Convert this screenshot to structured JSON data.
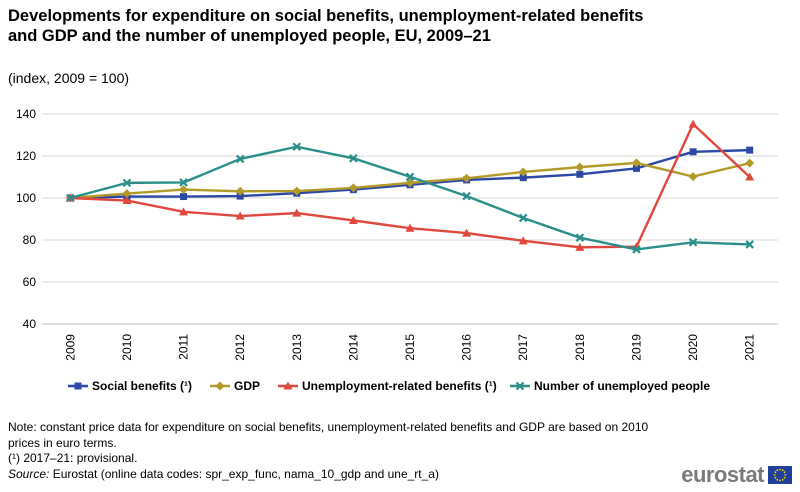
{
  "title": "Developments for expenditure on social benefits, unemployment-related benefits and GDP and the number of unemployed people, EU, 2009–21",
  "subtitle": "(index, 2009 = 100)",
  "chart_data": {
    "type": "line",
    "title": "Developments for expenditure on social benefits, unemployment-related benefits and GDP and the number of unemployed people, EU, 2009–21",
    "subtitle": "(index, 2009 = 100)",
    "categories": [
      "2009",
      "2010",
      "2011",
      "2012",
      "2013",
      "2014",
      "2015",
      "2016",
      "2017",
      "2018",
      "2019",
      "2020",
      "2021"
    ],
    "ylim": [
      40,
      140
    ],
    "yticks": [
      40,
      60,
      80,
      100,
      120,
      140
    ],
    "grid": true,
    "legend_position": "bottom",
    "series": [
      {
        "name": "Social benefits (¹)",
        "color": "#2b48a6",
        "marker": "square",
        "values": [
          100,
          100.7,
          100.7,
          100.9,
          102.3,
          104.0,
          106.3,
          108.6,
          109.7,
          111.3,
          114.1,
          122.0,
          122.8
        ]
      },
      {
        "name": "GDP",
        "color": "#b39a28",
        "marker": "diamond",
        "values": [
          100,
          102.1,
          104.0,
          103.2,
          103.3,
          104.8,
          107.2,
          109.4,
          112.4,
          114.7,
          116.7,
          110.2,
          116.6
        ]
      },
      {
        "name": "Unemployment-related benefits (¹)",
        "color": "#e0473d",
        "marker": "triangle",
        "values": [
          100,
          98.8,
          93.4,
          91.4,
          92.8,
          89.3,
          85.6,
          83.3,
          79.6,
          76.5,
          76.8,
          135.2,
          110.0
        ]
      },
      {
        "name": "Number of unemployed people",
        "color": "#2a8f8a",
        "marker": "x",
        "values": [
          100,
          107.2,
          107.4,
          118.6,
          124.4,
          118.9,
          110.1,
          100.9,
          90.5,
          81.1,
          75.5,
          78.9,
          77.9
        ]
      }
    ]
  },
  "notes": {
    "note": "Note: constant price data for expenditure on social benefits, unemployment-related benefits and GDP are based on 2010 prices in euro terms.",
    "provisional": "(¹) 2017–21: provisional.",
    "source_label": "Source:",
    "source_text": " Eurostat (online data codes: spr_exp_func, nama_10_gdp and une_rt_a)"
  },
  "logo": {
    "text": "eurostat",
    "icon": "eu-flag-icon"
  }
}
